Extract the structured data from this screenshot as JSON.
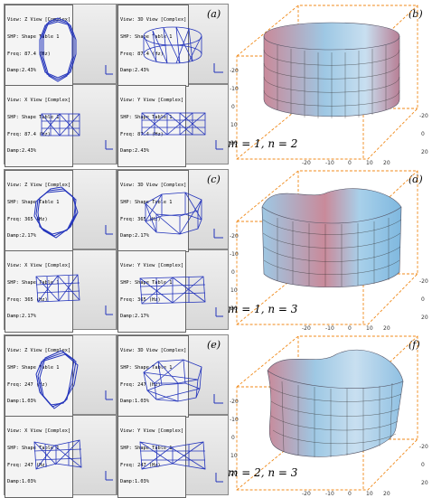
{
  "groups": [
    {
      "tag_left": "(a)",
      "tag_right": "(b)",
      "mode_m": "m",
      "mode_m_val": "1",
      "mode_n": "n",
      "mode_n_val": "2",
      "views": [
        {
          "title": "View: Z View [Complex]",
          "shp": "SHP: Shape Table 1",
          "freq": "Freq: 87.4 (Hz)",
          "damp": "Damp:2.43%"
        },
        {
          "title": "View: 3D View [Complex]",
          "shp": "SHP: Shape Table 1",
          "freq": "Freq: 87.4 (Hz)",
          "damp": "Damp:2.43%"
        },
        {
          "title": "View: X View [Complex]",
          "shp": "SHP: Shape Table 1",
          "freq": "Freq: 87.4 (Hz)",
          "damp": "Damp:2.43%"
        },
        {
          "title": "View: Y View [Complex]",
          "shp": "SHP: Shape Table 1",
          "freq": "Freq: 87.4 (Hz)",
          "damp": "Damp:2.43%"
        }
      ]
    },
    {
      "tag_left": "(c)",
      "tag_right": "(d)",
      "mode_m": "m",
      "mode_m_val": "1",
      "mode_n": "n",
      "mode_n_val": "3",
      "views": [
        {
          "title": "View: Z View [Complex]",
          "shp": "SHP: Shape Table 1",
          "freq": "Freq: 365 (Hz)",
          "damp": "Damp:2.17%"
        },
        {
          "title": "View: 3D View [Complex]",
          "shp": "SHP: Shape Table 1",
          "freq": "Freq: 365 (Hz)",
          "damp": "Damp:2.17%"
        },
        {
          "title": "View: X View [Complex]",
          "shp": "SHP: Shape Table 1",
          "freq": "Freq: 365 (Hz)",
          "damp": "Damp:2.17%"
        },
        {
          "title": "View: Y View [Complex]",
          "shp": "SHP: Shape Table 1",
          "freq": "Freq: 365 (Hz)",
          "damp": "Damp:2.17%"
        }
      ]
    },
    {
      "tag_left": "(e)",
      "tag_right": "(f)",
      "mode_m": "m",
      "mode_m_val": "2",
      "mode_n": "n",
      "mode_n_val": "3",
      "views": [
        {
          "title": "View: Z View [Complex]",
          "shp": "SHP: Shape Table 1",
          "freq": "Freq: 247 (Hz)",
          "damp": "Damp:1.03%"
        },
        {
          "title": "View: 3D View [Complex]",
          "shp": "SHP: Shape Table 1",
          "freq": "Freq: 247 (Hz)",
          "damp": "Damp:1.03%"
        },
        {
          "title": "View: X View [Complex]",
          "shp": "SHP: Shape Table 1",
          "freq": "Freq: 247 (Hz)",
          "damp": "Damp:1.03%"
        },
        {
          "title": "View: Y View [Complex]",
          "shp": "SHP: Shape Table 1",
          "freq": "Freq: 247 (Hz)",
          "damp": "Damp:1.03%"
        }
      ]
    }
  ],
  "axis_ticks": [
    "-20",
    "-10",
    "0",
    "10",
    "20"
  ],
  "axis_letters": {
    "x": "X",
    "y": "Y",
    "z": "Z"
  },
  "colors": {
    "mesh": "#2233bb",
    "box": "#f08a1a",
    "surface_blue": "#8fc8ea",
    "surface_red": "#c98a9a"
  }
}
